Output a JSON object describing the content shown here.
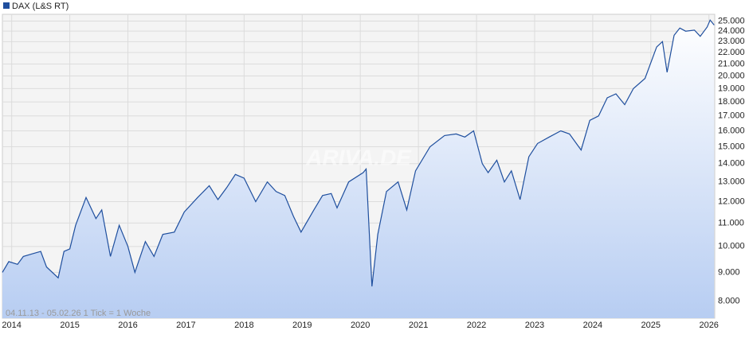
{
  "chart_data": {
    "type": "area",
    "legend": "DAX (L&S RT)",
    "footnote": "04.11.13 - 05.02.26   1 Tick = 1 Woche",
    "watermark": "ARIVA.DE",
    "log_scale": true,
    "grid": true,
    "color": "#1f4f9e",
    "xlim": [
      2013.84,
      2026.1
    ],
    "xticks": [
      2014,
      2015,
      2016,
      2017,
      2018,
      2019,
      2020,
      2021,
      2022,
      2023,
      2024,
      2025,
      2026
    ],
    "ylim": [
      7470,
      25700
    ],
    "yticks": [
      {
        "value": 8000,
        "label": "8.000"
      },
      {
        "value": 9000,
        "label": "9.000"
      },
      {
        "value": 10000,
        "label": "10.000"
      },
      {
        "value": 11000,
        "label": "11.000"
      },
      {
        "value": 12000,
        "label": "12.000"
      },
      {
        "value": 13000,
        "label": "13.000"
      },
      {
        "value": 14000,
        "label": "14.000"
      },
      {
        "value": 15000,
        "label": "15.000"
      },
      {
        "value": 16000,
        "label": "16.000"
      },
      {
        "value": 17000,
        "label": "17.000"
      },
      {
        "value": 18000,
        "label": "18.000"
      },
      {
        "value": 19000,
        "label": "19.000"
      },
      {
        "value": 20000,
        "label": "20.000"
      },
      {
        "value": 21000,
        "label": "21.000"
      },
      {
        "value": 22000,
        "label": "22.000"
      },
      {
        "value": 23000,
        "label": "23.000"
      },
      {
        "value": 24000,
        "label": "24.000"
      },
      {
        "value": 25000,
        "label": "25.000"
      }
    ],
    "x": [
      2013.84,
      2013.95,
      2014.1,
      2014.2,
      2014.35,
      2014.5,
      2014.6,
      2014.8,
      2014.9,
      2015.0,
      2015.1,
      2015.28,
      2015.45,
      2015.55,
      2015.7,
      2015.85,
      2016.0,
      2016.12,
      2016.3,
      2016.45,
      2016.6,
      2016.8,
      2016.97,
      2017.2,
      2017.4,
      2017.55,
      2017.7,
      2017.85,
      2018.0,
      2018.2,
      2018.4,
      2018.55,
      2018.7,
      2018.85,
      2018.98,
      2019.2,
      2019.35,
      2019.5,
      2019.6,
      2019.8,
      2020.05,
      2020.1,
      2020.2,
      2020.3,
      2020.45,
      2020.65,
      2020.8,
      2020.95,
      2021.2,
      2021.45,
      2021.65,
      2021.8,
      2021.95,
      2022.1,
      2022.2,
      2022.35,
      2022.48,
      2022.6,
      2022.75,
      2022.9,
      2023.05,
      2023.25,
      2023.45,
      2023.6,
      2023.8,
      2023.95,
      2024.1,
      2024.25,
      2024.4,
      2024.55,
      2024.7,
      2024.9,
      2025.1,
      2025.2,
      2025.28,
      2025.4,
      2025.5,
      2025.6,
      2025.75,
      2025.85,
      2025.97,
      2026.02,
      2026.09
    ],
    "values": [
      9000,
      9400,
      9300,
      9600,
      9700,
      9800,
      9200,
      8800,
      9800,
      9900,
      10900,
      12200,
      11200,
      11600,
      9600,
      10900,
      10000,
      9000,
      10200,
      9600,
      10500,
      10600,
      11500,
      12200,
      12800,
      12100,
      12700,
      13400,
      13200,
      12000,
      13000,
      12500,
      12300,
      11300,
      10600,
      11600,
      12300,
      12400,
      11700,
      13000,
      13500,
      13700,
      8500,
      10500,
      12500,
      13000,
      11600,
      13600,
      15000,
      15700,
      15800,
      15600,
      16000,
      14000,
      13500,
      14200,
      13000,
      13600,
      12100,
      14400,
      15200,
      15600,
      16000,
      15800,
      14800,
      16700,
      17000,
      18300,
      18600,
      17800,
      19000,
      19800,
      22500,
      23000,
      20300,
      23600,
      24300,
      24000,
      24100,
      23500,
      24400,
      25100,
      24600
    ]
  }
}
